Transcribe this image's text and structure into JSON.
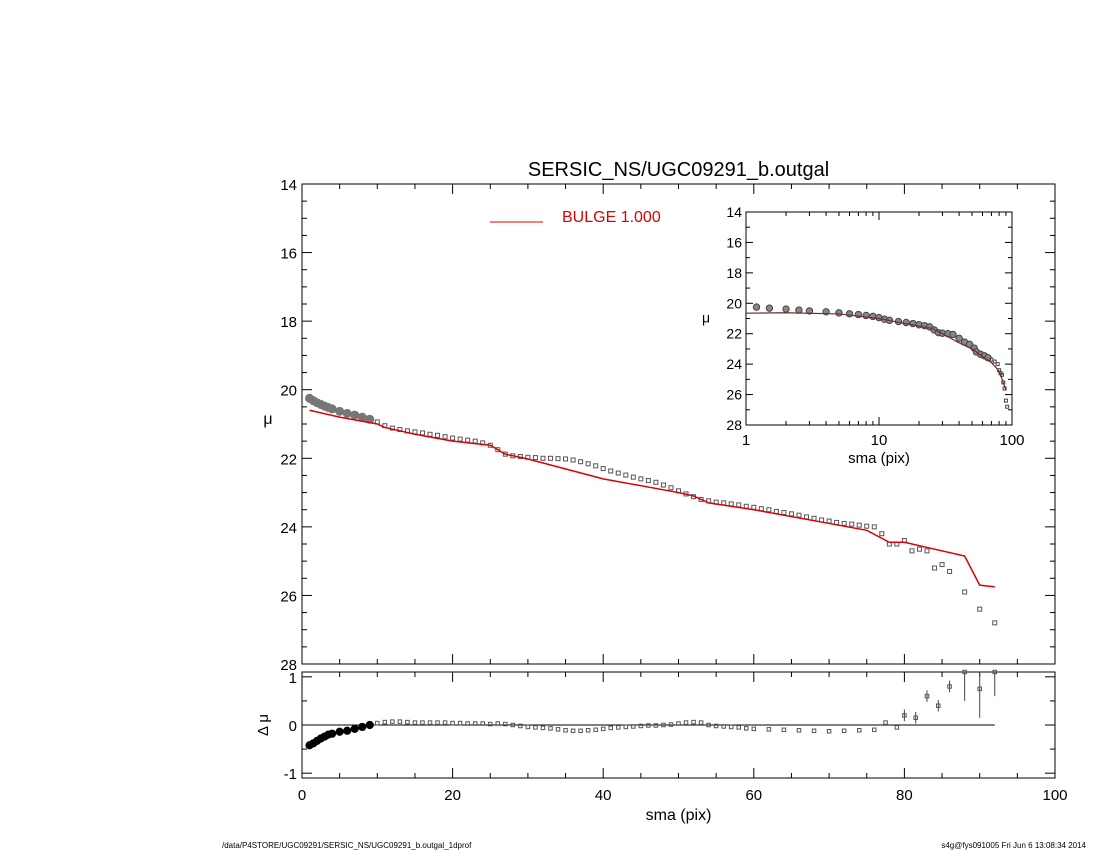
{
  "footer": {
    "path": "/data/P4STORE/UGC09291/SERSIC_NS/UGC09291_b.outgal_1dprof",
    "stamp": "s4g@fys091005  Fri Jun  6 13:08:34 2014"
  },
  "colors": {
    "model": "#dd0000",
    "data_main": "#555555",
    "data_inset": "#444444",
    "axes": "#000000"
  },
  "chart_data": [
    {
      "id": "main-profile",
      "type": "scatter",
      "title": "SERSIC_NS/UGC09291_b.outgal",
      "xlabel": "",
      "ylabel": "μ",
      "xlim": [
        0,
        100
      ],
      "ylim": [
        28,
        14
      ],
      "xticks": [
        0,
        20,
        40,
        60,
        80,
        100
      ],
      "yticks": [
        14,
        16,
        18,
        20,
        22,
        24,
        26,
        28
      ],
      "legend": {
        "text": "BULGE  1.000",
        "placement": "top-center"
      },
      "data_points": {
        "x": [
          1.0,
          1.5,
          2.0,
          2.5,
          3.0,
          3.5,
          4.0,
          5.0,
          6.0,
          7.0,
          8.0,
          9.0,
          10.0,
          11.0,
          12.0,
          13.0,
          14.0,
          15.0,
          16.0,
          17.0,
          18.0,
          19.0,
          20.0,
          21.0,
          22.0,
          23.0,
          24.0,
          25.0,
          26.0,
          27.0,
          28.0,
          29.0,
          30.0,
          31.0,
          32.0,
          33.0,
          34.0,
          35.0,
          36.0,
          37.0,
          38.0,
          39.0,
          40.0,
          41.0,
          42.0,
          43.0,
          44.0,
          45.0,
          46.0,
          47.0,
          48.0,
          49.0,
          50.0,
          51.0,
          52.0,
          53.0,
          54.0,
          55.0,
          56.0,
          57.0,
          58.0,
          59.0,
          60.0,
          61.0,
          62.0,
          63.0,
          64.0,
          65.0,
          66.0,
          67.0,
          68.0,
          69.0,
          70.0,
          71.0,
          72.0,
          73.0,
          74.0,
          75.0,
          76.0,
          77.0,
          78.0,
          79.0,
          80.0,
          81.0,
          82.0,
          83.0,
          84.0,
          85.0,
          86.0,
          88.0,
          90.0,
          92.0
        ],
        "y": [
          20.25,
          20.32,
          20.38,
          20.43,
          20.48,
          20.52,
          20.56,
          20.63,
          20.69,
          20.74,
          20.8,
          20.86,
          20.94,
          21.05,
          21.12,
          21.16,
          21.2,
          21.23,
          21.26,
          21.3,
          21.33,
          21.37,
          21.41,
          21.44,
          21.47,
          21.5,
          21.55,
          21.62,
          21.75,
          21.88,
          21.93,
          21.95,
          21.97,
          21.98,
          22.0,
          22.0,
          22.01,
          22.02,
          22.05,
          22.1,
          22.16,
          22.22,
          22.3,
          22.37,
          22.43,
          22.49,
          22.55,
          22.6,
          22.65,
          22.7,
          22.78,
          22.86,
          22.95,
          23.04,
          23.12,
          23.2,
          23.24,
          23.28,
          23.3,
          23.33,
          23.36,
          23.4,
          23.43,
          23.47,
          23.5,
          23.55,
          23.58,
          23.62,
          23.66,
          23.71,
          23.75,
          23.8,
          23.83,
          23.87,
          23.9,
          23.92,
          23.95,
          23.98,
          24.0,
          24.2,
          24.5,
          24.5,
          24.4,
          24.7,
          24.65,
          24.7,
          25.2,
          25.1,
          25.3,
          25.9,
          26.4,
          26.8
        ]
      },
      "model": {
        "x": [
          1,
          5,
          10,
          11,
          15,
          20,
          25,
          27,
          30,
          40,
          50,
          52,
          53,
          54,
          60,
          70,
          75,
          78,
          80,
          83,
          88,
          90,
          92
        ],
        "y": [
          20.6,
          20.8,
          21.0,
          21.1,
          21.3,
          21.5,
          21.62,
          21.88,
          22.02,
          22.6,
          23.0,
          23.1,
          23.2,
          23.3,
          23.5,
          23.9,
          24.1,
          24.45,
          24.45,
          24.6,
          24.85,
          25.7,
          25.75
        ]
      }
    },
    {
      "id": "inset-profile",
      "type": "scatter",
      "xscale": "log",
      "xlabel": "sma (pix)",
      "ylabel": "μ",
      "xlim": [
        1,
        100
      ],
      "ylim": [
        28,
        14
      ],
      "xticks": [
        1,
        10,
        100
      ],
      "xtick_labels": [
        "1",
        "10",
        "100"
      ],
      "yticks": [
        14,
        16,
        18,
        20,
        22,
        24,
        26,
        28
      ],
      "data_points": {
        "x": [
          1.2,
          1.5,
          2.0,
          2.5,
          3.0,
          4.0,
          5.0,
          6.0,
          7.0,
          8.0,
          9.0,
          10.0,
          11.0,
          12.0,
          14.0,
          16.0,
          18.0,
          20.0,
          22.0,
          24.0,
          26.0,
          28.0,
          30.0,
          33.0,
          36.0,
          40.0,
          44.0,
          48.0,
          52.0,
          54.0,
          58.0,
          62.0,
          66.0,
          70.0,
          74.0,
          78.0,
          80.0,
          82.0,
          84.0,
          86.0,
          88.0,
          90.0,
          92.0
        ],
        "y": [
          20.25,
          20.32,
          20.38,
          20.45,
          20.5,
          20.56,
          20.63,
          20.69,
          20.74,
          20.8,
          20.86,
          20.94,
          21.05,
          21.12,
          21.2,
          21.26,
          21.33,
          21.41,
          21.47,
          21.55,
          21.75,
          21.93,
          21.97,
          22.0,
          22.05,
          22.3,
          22.55,
          22.7,
          22.95,
          23.2,
          23.35,
          23.45,
          23.58,
          23.7,
          23.83,
          24.0,
          24.4,
          24.6,
          24.7,
          25.2,
          25.6,
          26.4,
          26.8
        ]
      },
      "model": {
        "x": [
          1,
          2,
          5,
          10,
          15,
          20,
          25,
          30,
          40,
          50,
          60,
          70,
          80,
          90
        ],
        "y": [
          20.65,
          20.62,
          20.7,
          21.0,
          21.3,
          21.5,
          21.65,
          22.0,
          22.6,
          23.0,
          23.5,
          23.9,
          24.45,
          25.7
        ]
      }
    },
    {
      "id": "residuals",
      "type": "scatter",
      "xlabel": "sma (pix)",
      "ylabel": "Δ μ",
      "xlim": [
        0,
        100
      ],
      "ylim": [
        -1.1,
        1.1
      ],
      "xticks": [
        0,
        20,
        40,
        60,
        80,
        100
      ],
      "yticks": [
        -1,
        0,
        1
      ],
      "zero_line_end_x": 92,
      "data_points": {
        "x": [
          1.0,
          1.5,
          2.0,
          2.5,
          3.0,
          3.5,
          4.0,
          5.0,
          6.0,
          7.0,
          8.0,
          9.0,
          10.0,
          11.0,
          12.0,
          13.0,
          14.0,
          15.0,
          16.0,
          17.0,
          18.0,
          19.0,
          20.0,
          21.0,
          22.0,
          23.0,
          24.0,
          25.0,
          26.0,
          27.0,
          28.0,
          29.0,
          30.0,
          31.0,
          32.0,
          33.0,
          34.0,
          35.0,
          36.0,
          37.0,
          38.0,
          39.0,
          40.0,
          41.0,
          42.0,
          43.0,
          44.0,
          45.0,
          46.0,
          47.0,
          48.0,
          49.0,
          50.0,
          51.0,
          52.0,
          53.0,
          54.0,
          55.0,
          56.0,
          57.0,
          58.0,
          59.0,
          60.0,
          62.0,
          64.0,
          66.0,
          68.0,
          70.0,
          72.0,
          74.0,
          76.0,
          77.5,
          79.0,
          80.0,
          81.5,
          83.0,
          84.5,
          86.0,
          88.0,
          90.0,
          92.0
        ],
        "y": [
          -0.42,
          -0.38,
          -0.33,
          -0.28,
          -0.24,
          -0.2,
          -0.18,
          -0.14,
          -0.12,
          -0.08,
          -0.04,
          0.0,
          0.04,
          0.06,
          0.07,
          0.07,
          0.06,
          0.05,
          0.05,
          0.05,
          0.05,
          0.05,
          0.04,
          0.04,
          0.03,
          0.03,
          0.03,
          0.02,
          0.03,
          0.02,
          0.0,
          -0.02,
          -0.04,
          -0.05,
          -0.06,
          -0.07,
          -0.09,
          -0.11,
          -0.12,
          -0.12,
          -0.11,
          -0.1,
          -0.08,
          -0.06,
          -0.05,
          -0.04,
          -0.03,
          -0.02,
          -0.01,
          -0.01,
          0.0,
          0.01,
          0.03,
          0.05,
          0.06,
          0.05,
          0.0,
          -0.02,
          -0.03,
          -0.04,
          -0.05,
          -0.07,
          -0.08,
          -0.09,
          -0.1,
          -0.11,
          -0.12,
          -0.13,
          -0.12,
          -0.11,
          -0.1,
          0.05,
          -0.05,
          0.2,
          0.15,
          0.6,
          0.4,
          0.8,
          1.1,
          0.75,
          1.2
        ]
      }
    }
  ]
}
